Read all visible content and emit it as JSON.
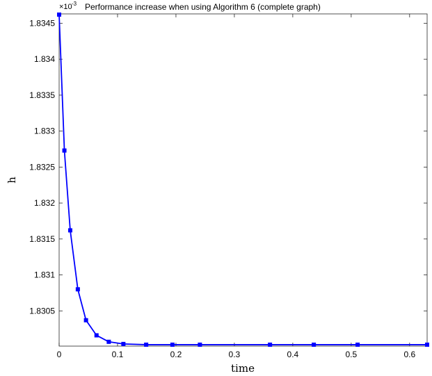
{
  "chart_data": {
    "type": "line",
    "title": "Performance increase when using Algorithm 6 (complete graph)",
    "xlabel": "time",
    "ylabel": "h",
    "y_exponent": {
      "base": "×10",
      "power": "-3"
    },
    "xlim": [
      0,
      0.63
    ],
    "ylim": [
      1.83001,
      1.83463
    ],
    "xticks": [
      0,
      0.1,
      0.2,
      0.3,
      0.4,
      0.5,
      0.6
    ],
    "xtick_labels": [
      "0",
      "0.1",
      "0.2",
      "0.3",
      "0.4",
      "0.5",
      "0.6"
    ],
    "yticks": [
      1.8305,
      1.831,
      1.8315,
      1.832,
      1.8325,
      1.833,
      1.8335,
      1.834,
      1.8345
    ],
    "ytick_labels": [
      "1.8305",
      "1.831",
      "1.8315",
      "1.832",
      "1.8325",
      "1.833",
      "1.8335",
      "1.834",
      "1.8345"
    ],
    "grid": false,
    "series": [
      {
        "color": "#0000ff",
        "marker": "square",
        "x": [
          0.0,
          0.009,
          0.019,
          0.032,
          0.046,
          0.064,
          0.085,
          0.11,
          0.149,
          0.194,
          0.241,
          0.361,
          0.436,
          0.511,
          0.63
        ],
        "y": [
          1.83462,
          1.83273,
          1.83162,
          1.8308,
          1.83037,
          1.83016,
          1.83007,
          1.83004,
          1.83003,
          1.83003,
          1.83003,
          1.83003,
          1.83003,
          1.83003,
          1.83003
        ]
      }
    ]
  }
}
